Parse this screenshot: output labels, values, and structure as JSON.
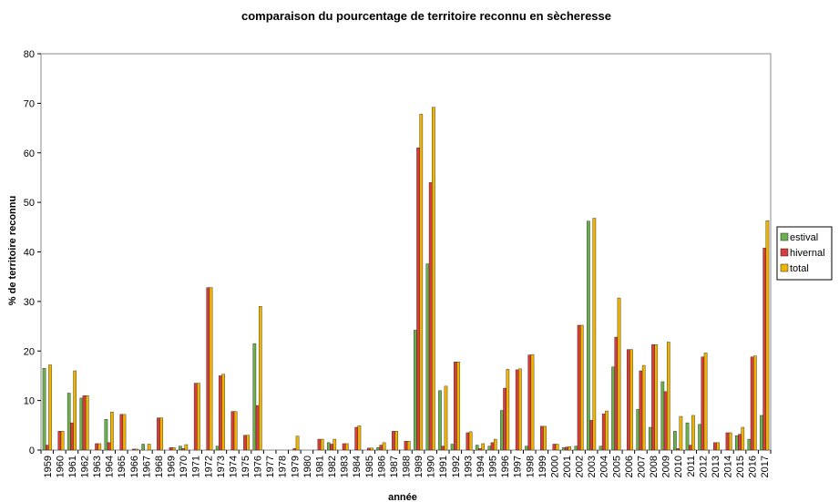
{
  "chart_data": {
    "type": "bar",
    "title": "comparaison du pourcentage de territoire reconnu en sècheresse",
    "xlabel": "année",
    "ylabel": "% de territoire reconnu",
    "ylim": [
      0,
      80
    ],
    "yticks": [
      0,
      10,
      20,
      30,
      40,
      50,
      60,
      70,
      80
    ],
    "grid": false,
    "legend_position": "right",
    "categories": [
      "1959",
      "1960",
      "1961",
      "1962",
      "1963",
      "1964",
      "1965",
      "1966",
      "1967",
      "1968",
      "1969",
      "1970",
      "1971",
      "1972",
      "1973",
      "1974",
      "1975",
      "1976",
      "1977",
      "1978",
      "1979",
      "1980",
      "1981",
      "1982",
      "1983",
      "1984",
      "1985",
      "1986",
      "1987",
      "1988",
      "1989",
      "1990",
      "1991",
      "1992",
      "1993",
      "1994",
      "1995",
      "1996",
      "1997",
      "1998",
      "1999",
      "2000",
      "2001",
      "2002",
      "2003",
      "2004",
      "2005",
      "2006",
      "2007",
      "2008",
      "2009",
      "2010",
      "2011",
      "2012",
      "2013",
      "2014",
      "2015",
      "2016",
      "2017"
    ],
    "series": [
      {
        "name": "estival",
        "color": "#6ab04c",
        "values": [
          16.5,
          0,
          11.5,
          10.5,
          0,
          6.2,
          0,
          0,
          1.2,
          0,
          0,
          0.8,
          0,
          0,
          0.8,
          0,
          0,
          21.5,
          0,
          0,
          0,
          0,
          0,
          1.5,
          0,
          0,
          0,
          0.5,
          0,
          0,
          24.2,
          37.6,
          12.0,
          1.2,
          0,
          1.0,
          0.8,
          8.0,
          0,
          0.8,
          0,
          0,
          0.5,
          0.8,
          46.2,
          0.8,
          16.8,
          0,
          8.2,
          4.6,
          13.8,
          3.8,
          5.5,
          5.2,
          0,
          0,
          2.9,
          2.2,
          7.0
        ]
      },
      {
        "name": "hivernal",
        "color": "#d83c3c",
        "values": [
          1.0,
          3.8,
          5.5,
          11.0,
          1.3,
          1.5,
          7.2,
          0.2,
          0,
          6.5,
          0.5,
          0.3,
          13.5,
          32.8,
          15.0,
          7.8,
          3.0,
          9.0,
          0,
          0,
          0.3,
          0,
          2.2,
          1.2,
          1.3,
          4.6,
          0.4,
          1.0,
          3.8,
          1.8,
          61.0,
          54.0,
          0.8,
          17.8,
          3.5,
          0.3,
          1.5,
          12.5,
          16.2,
          19.2,
          4.8,
          1.2,
          0.6,
          25.2,
          6.0,
          7.3,
          22.8,
          20.3,
          16.0,
          21.3,
          11.8,
          0.3,
          1.0,
          18.8,
          1.5,
          3.5,
          3.2,
          18.8,
          40.8
        ]
      },
      {
        "name": "total",
        "color": "#f0b400",
        "values": [
          17.2,
          3.8,
          16.0,
          11.0,
          1.3,
          7.7,
          7.2,
          0.2,
          1.2,
          6.5,
          0.5,
          1.1,
          13.5,
          32.8,
          15.3,
          7.8,
          3.0,
          29.0,
          0,
          0,
          2.8,
          0,
          2.2,
          2.2,
          1.3,
          4.9,
          0.4,
          1.5,
          3.8,
          1.8,
          67.8,
          69.2,
          12.9,
          17.8,
          3.7,
          1.3,
          2.2,
          16.3,
          16.4,
          19.3,
          4.8,
          1.2,
          0.7,
          25.2,
          46.8,
          7.9,
          30.7,
          20.3,
          17.1,
          21.3,
          21.8,
          6.8,
          7.0,
          19.6,
          1.5,
          3.5,
          4.6,
          19.0,
          46.3
        ]
      }
    ]
  }
}
